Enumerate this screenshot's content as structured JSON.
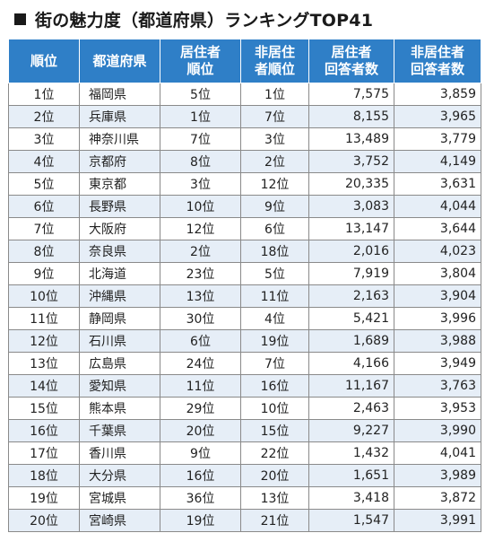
{
  "title": "街の魅力度（都道府県）ランキングTOP41",
  "headers": {
    "rank": "順位",
    "prefecture": "都道府県",
    "resident_rank": "居住者\n順位",
    "nonresident_rank": "非居住\n者順位",
    "resident_count": "居住者\n回答者数",
    "nonresident_count": "非居住者\n回答者数"
  },
  "rows": [
    {
      "rank": "1位",
      "prefecture": "福岡県",
      "resident_rank": "5位",
      "nonresident_rank": "1位",
      "resident_count": "7,575",
      "nonresident_count": "3,859"
    },
    {
      "rank": "2位",
      "prefecture": "兵庫県",
      "resident_rank": "1位",
      "nonresident_rank": "7位",
      "resident_count": "8,155",
      "nonresident_count": "3,965"
    },
    {
      "rank": "3位",
      "prefecture": "神奈川県",
      "resident_rank": "7位",
      "nonresident_rank": "3位",
      "resident_count": "13,489",
      "nonresident_count": "3,779"
    },
    {
      "rank": "4位",
      "prefecture": "京都府",
      "resident_rank": "8位",
      "nonresident_rank": "2位",
      "resident_count": "3,752",
      "nonresident_count": "4,149"
    },
    {
      "rank": "5位",
      "prefecture": "東京都",
      "resident_rank": "3位",
      "nonresident_rank": "12位",
      "resident_count": "20,335",
      "nonresident_count": "3,631"
    },
    {
      "rank": "6位",
      "prefecture": "長野県",
      "resident_rank": "10位",
      "nonresident_rank": "9位",
      "resident_count": "3,083",
      "nonresident_count": "4,044"
    },
    {
      "rank": "7位",
      "prefecture": "大阪府",
      "resident_rank": "12位",
      "nonresident_rank": "6位",
      "resident_count": "13,147",
      "nonresident_count": "3,644"
    },
    {
      "rank": "8位",
      "prefecture": "奈良県",
      "resident_rank": "2位",
      "nonresident_rank": "18位",
      "resident_count": "2,016",
      "nonresident_count": "4,023"
    },
    {
      "rank": "9位",
      "prefecture": "北海道",
      "resident_rank": "23位",
      "nonresident_rank": "5位",
      "resident_count": "7,919",
      "nonresident_count": "3,804"
    },
    {
      "rank": "10位",
      "prefecture": "沖縄県",
      "resident_rank": "13位",
      "nonresident_rank": "11位",
      "resident_count": "2,163",
      "nonresident_count": "3,904"
    },
    {
      "rank": "11位",
      "prefecture": "静岡県",
      "resident_rank": "30位",
      "nonresident_rank": "4位",
      "resident_count": "5,421",
      "nonresident_count": "3,996"
    },
    {
      "rank": "12位",
      "prefecture": "石川県",
      "resident_rank": "6位",
      "nonresident_rank": "19位",
      "resident_count": "1,689",
      "nonresident_count": "3,988"
    },
    {
      "rank": "13位",
      "prefecture": "広島県",
      "resident_rank": "24位",
      "nonresident_rank": "7位",
      "resident_count": "4,166",
      "nonresident_count": "3,949"
    },
    {
      "rank": "14位",
      "prefecture": "愛知県",
      "resident_rank": "11位",
      "nonresident_rank": "16位",
      "resident_count": "11,167",
      "nonresident_count": "3,763"
    },
    {
      "rank": "15位",
      "prefecture": "熊本県",
      "resident_rank": "29位",
      "nonresident_rank": "10位",
      "resident_count": "2,463",
      "nonresident_count": "3,953"
    },
    {
      "rank": "16位",
      "prefecture": "千葉県",
      "resident_rank": "20位",
      "nonresident_rank": "15位",
      "resident_count": "9,227",
      "nonresident_count": "3,990"
    },
    {
      "rank": "17位",
      "prefecture": "香川県",
      "resident_rank": "9位",
      "nonresident_rank": "22位",
      "resident_count": "1,432",
      "nonresident_count": "4,041"
    },
    {
      "rank": "18位",
      "prefecture": "大分県",
      "resident_rank": "16位",
      "nonresident_rank": "20位",
      "resident_count": "1,651",
      "nonresident_count": "3,989"
    },
    {
      "rank": "19位",
      "prefecture": "宮城県",
      "resident_rank": "36位",
      "nonresident_rank": "13位",
      "resident_count": "3,418",
      "nonresident_count": "3,872"
    },
    {
      "rank": "20位",
      "prefecture": "宮崎県",
      "resident_rank": "19位",
      "nonresident_rank": "21位",
      "resident_count": "1,547",
      "nonresident_count": "3,991"
    }
  ]
}
